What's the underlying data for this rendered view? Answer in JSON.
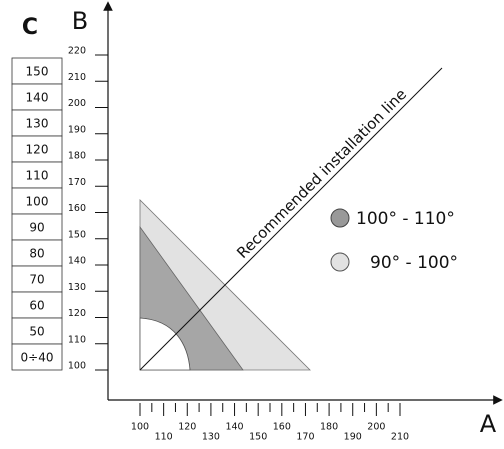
{
  "labels": {
    "c": "C",
    "b": "B",
    "a": "A"
  },
  "table_c": {
    "rows": [
      "150",
      "140",
      "130",
      "120",
      "110",
      "100",
      "90",
      "80",
      "70",
      "60",
      "50",
      "0÷40"
    ]
  },
  "axis_b": {
    "ticks": [
      220,
      210,
      200,
      190,
      180,
      170,
      160,
      150,
      140,
      130,
      120,
      110,
      100
    ]
  },
  "axis_a": {
    "ticks": [
      100,
      110,
      120,
      130,
      140,
      150,
      160,
      170,
      180,
      190,
      200,
      210
    ]
  },
  "annotation": "Recommended installation line",
  "legend": [
    {
      "label": "100° - 110°"
    },
    {
      "label": "90° - 100°"
    }
  ]
}
